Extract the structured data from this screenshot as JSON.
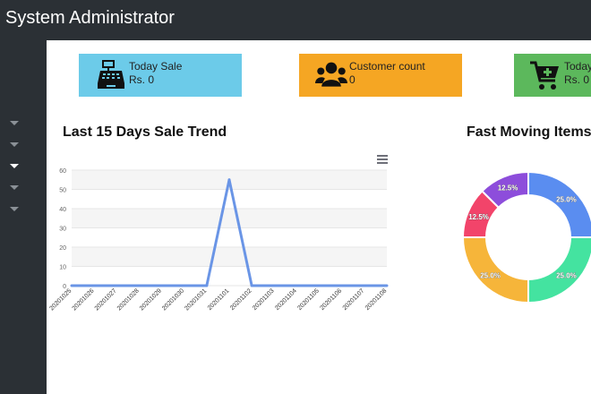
{
  "header": {
    "title": "System Administrator"
  },
  "sidebar": {
    "items": [
      "collapsed",
      "collapsed",
      "expanded",
      "collapsed",
      "collapsed"
    ]
  },
  "cards": [
    {
      "label": "Today Sale",
      "value": "Rs. 0",
      "color": "#6ccbe9",
      "icon": "cash-register-icon"
    },
    {
      "label": "Customer count",
      "value": "0",
      "color": "#f5a623",
      "icon": "users-icon"
    },
    {
      "label": "Today",
      "value": "Rs. 0",
      "color": "#5cb85c",
      "icon": "cart-plus-icon"
    }
  ],
  "sales_section": {
    "title": "Last 15 Days Sale Trend"
  },
  "items_section": {
    "title": "Fast Moving Items"
  },
  "chart_data": [
    {
      "type": "line",
      "title": "Last 15 Days Sale Trend",
      "categories": [
        "20201025",
        "20201026",
        "20201027",
        "20201028",
        "20201029",
        "20201030",
        "20201031",
        "20201101",
        "20201102",
        "20201103",
        "20201104",
        "20201105",
        "20201106",
        "20201107",
        "20201108"
      ],
      "values": [
        0,
        0,
        0,
        0,
        0,
        0,
        0,
        55,
        0,
        0,
        0,
        0,
        0,
        0,
        0
      ],
      "ylim": [
        0,
        60
      ],
      "yticks": [
        0,
        10,
        20,
        30,
        40,
        50,
        60
      ],
      "color": "#6a95e6",
      "grid": true
    },
    {
      "type": "pie",
      "title": "Fast Moving Items",
      "slices": [
        {
          "value": 25.0,
          "label": "25.0%",
          "color": "#5a8df0"
        },
        {
          "value": 25.0,
          "label": "25.0%",
          "color": "#44e3a0"
        },
        {
          "value": 25.0,
          "label": "25.0%",
          "color": "#f6b53a"
        },
        {
          "value": 12.5,
          "label": "12.5%",
          "color": "#f2446a"
        },
        {
          "value": 12.5,
          "label": "12.5%",
          "color": "#8d4ddb"
        }
      ]
    }
  ]
}
